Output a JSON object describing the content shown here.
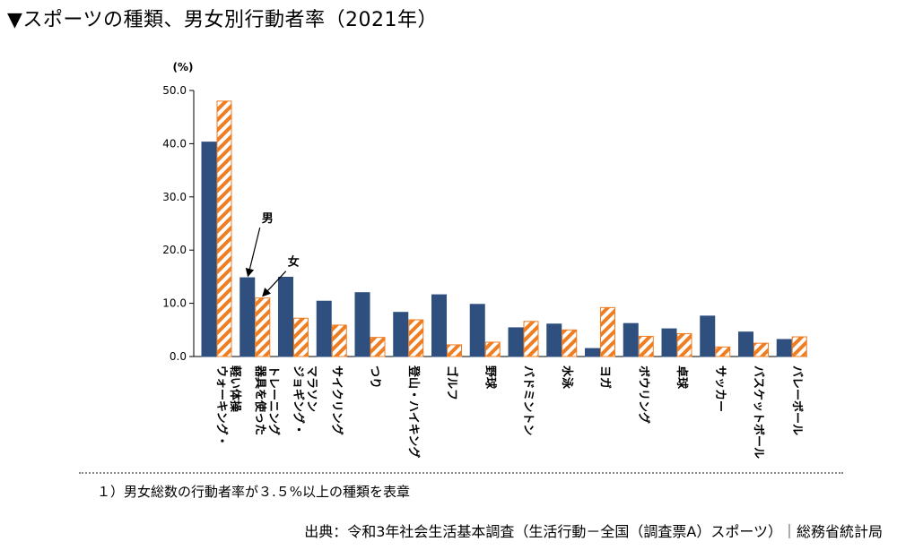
{
  "page": {
    "title": "▼スポーツの種類、男女別行動者率（2021年）",
    "footnote": "１）男女総数の行動者率が３.５%以上の種類を表章",
    "source": "出典：令和3年社会生活基本調査（生活行動－全国（調査票A）スポーツ）｜総務省統計局"
  },
  "colors": {
    "male": "#2f4f7f",
    "female_stripe": "#ef7d22",
    "female_bg": "#ffffff"
  },
  "chart_data": {
    "type": "bar",
    "title": "",
    "xlabel": "",
    "ylabel": "(%)",
    "ylim": [
      0,
      50
    ],
    "yticks": [
      "0.0",
      "10.0",
      "20.0",
      "30.0",
      "40.0",
      "50.0"
    ],
    "grid": false,
    "legend": "none",
    "categories": [
      [
        "ウォーキング・",
        "軽い体操"
      ],
      [
        "器具を使った",
        "トレーニング"
      ],
      [
        "ジョギング・",
        "マラソン"
      ],
      [
        "サイクリング"
      ],
      [
        "つり"
      ],
      [
        "登山・ハイキング"
      ],
      [
        "ゴルフ"
      ],
      [
        "野球"
      ],
      [
        "バドミントン"
      ],
      [
        "水泳"
      ],
      [
        "ヨガ"
      ],
      [
        "ボウリング"
      ],
      [
        "卓球"
      ],
      [
        "サッカー"
      ],
      [
        "バスケットボール"
      ],
      [
        "バレーボール"
      ]
    ],
    "series": [
      {
        "name": "男",
        "values": [
          40.3,
          14.8,
          14.9,
          10.4,
          12.0,
          8.3,
          11.6,
          9.8,
          5.4,
          6.1,
          1.5,
          6.2,
          5.2,
          7.6,
          4.6,
          3.2
        ]
      },
      {
        "name": "女",
        "values": [
          48.0,
          11.0,
          7.2,
          5.9,
          3.6,
          6.9,
          2.2,
          2.7,
          6.6,
          5.0,
          9.2,
          3.8,
          4.3,
          1.8,
          2.5,
          3.7
        ]
      }
    ],
    "annotations": [
      {
        "text": "男",
        "series": 0,
        "category": 1
      },
      {
        "text": "女",
        "series": 1,
        "category": 1
      }
    ]
  }
}
